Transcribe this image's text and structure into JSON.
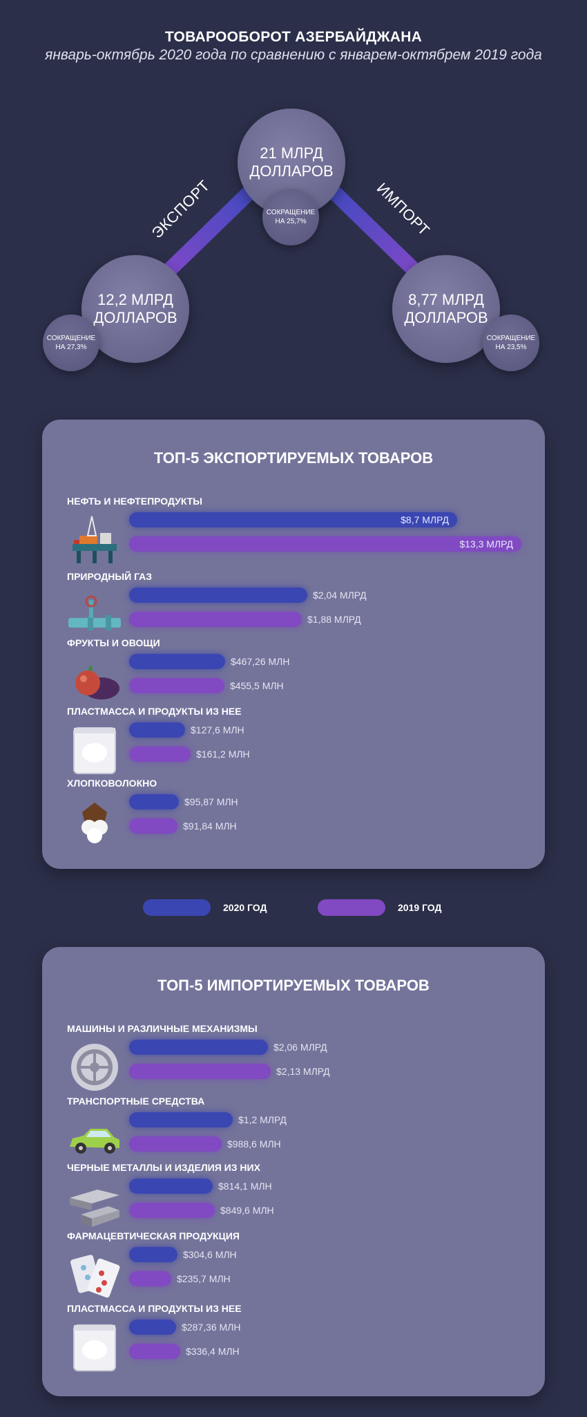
{
  "header": {
    "title": "ТОВАРООБОРОТ АЗЕРБАЙДЖАНА",
    "subtitle": "январь-октябрь 2020 года по сравнению с январем-октябрем 2019 года"
  },
  "overview": {
    "total": {
      "value_line1": "21 МЛРД",
      "value_line2": "ДОЛЛАРОВ",
      "change_line1": "СОКРАЩЕНИЕ",
      "change_line2": "НА 25,7%"
    },
    "export": {
      "label": "ЭКСПОРТ",
      "value_line1": "12,2 МЛРД",
      "value_line2": "ДОЛЛАРОВ",
      "change_line1": "СОКРАЩЕНИЕ",
      "change_line2": "НА 27,3%"
    },
    "import": {
      "label": "ИМПОРТ",
      "value_line1": "8,77 МЛРД",
      "value_line2": "ДОЛЛАРОВ",
      "change_line1": "СОКРАЩЕНИЕ",
      "change_line2": "НА 23,5%"
    }
  },
  "colors": {
    "bg": "#2b2f49",
    "panel": "#74749b",
    "year_2020": "#3a46b2",
    "year_2019": "#8149c2"
  },
  "legend": {
    "year_2020": "2020 ГОД",
    "year_2019": "2019 ГОД"
  },
  "chart_data": [
    {
      "type": "bar",
      "title": "ТОП-5 ЭКСПОРТИРУЕМЫХ ТОВАРОВ",
      "unit": "USD",
      "categories": [
        "НЕФТЬ И НЕФТЕПРОДУКТЫ",
        "ПРИРОДНЫЙ ГАЗ",
        "ФРУКТЫ И ОВОЩИ",
        "ПЛАСТМАССА И ПРОДУКТЫ ИЗ НЕЕ",
        "ХЛОПКОВОЛОКНО"
      ],
      "icons": [
        "oil-rig-icon",
        "gas-pipeline-icon",
        "fruits-vegetables-icon",
        "plastic-bag-icon",
        "cotton-icon"
      ],
      "series": [
        {
          "name": "2020 ГОД",
          "values": [
            8700000000,
            2040000000,
            467260000,
            127600000,
            95870000
          ],
          "labels": [
            "$8,7 МЛРД",
            "$2,04 МЛРД",
            "$467,26 МЛН",
            "$127,6 МЛН",
            "$95,87 МЛН"
          ]
        },
        {
          "name": "2019 ГОД",
          "values": [
            13300000000,
            1880000000,
            455500000,
            161200000,
            91840000
          ],
          "labels": [
            "$13,3 МЛРД",
            "$1,88 МЛРД",
            "$455,5 МЛН",
            "$161,2 МЛН",
            "$91,84 МЛН"
          ]
        }
      ]
    },
    {
      "type": "bar",
      "title": "ТОП-5 ИМПОРТИРУЕМЫХ ТОВАРОВ",
      "unit": "USD",
      "categories": [
        "МАШИНЫ И РАЗЛИЧНЫЕ МЕХАНИЗМЫ",
        "ТРАНСПОРТНЫЕ СРЕДСТВА",
        "ЧЕРНЫЕ МЕТАЛЛЫ И ИЗДЕЛИЯ ИЗ НИХ",
        "ФАРМАЦЕВТИЧЕСКАЯ ПРОДУКЦИЯ",
        "ПЛАСТМАССА И ПРОДУКТЫ ИЗ НЕЕ"
      ],
      "icons": [
        "gear-icon",
        "car-icon",
        "metal-bars-icon",
        "pills-icon",
        "plastic-bag-icon"
      ],
      "series": [
        {
          "name": "2020 ГОД",
          "values": [
            2060000000,
            1200000000,
            814100000,
            304600000,
            287360000
          ],
          "labels": [
            "$2,06 МЛРД",
            "$1,2 МЛРД",
            "$814,1 МЛН",
            "$304,6 МЛН",
            "$287,36 МЛН"
          ]
        },
        {
          "name": "2019 ГОД",
          "values": [
            2130000000,
            988600000,
            849600000,
            235700000,
            336400000
          ],
          "labels": [
            "$2,13 МЛРД",
            "$988,6 МЛН",
            "$849,6 МЛН",
            "$235,7 МЛН",
            "$336,4 МЛН"
          ]
        }
      ]
    }
  ]
}
